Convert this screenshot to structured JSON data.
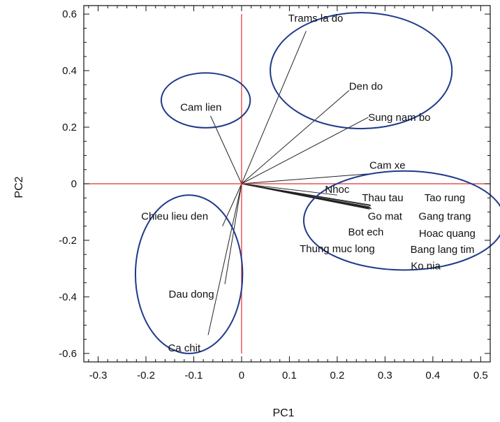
{
  "chart_data": {
    "type": "scatter",
    "title": "",
    "xlabel": "PC1",
    "ylabel": "PC2",
    "xlim": [
      -0.33,
      0.52
    ],
    "ylim": [
      -0.63,
      0.63
    ],
    "x_ticks": [
      -0.3,
      -0.2,
      -0.1,
      0,
      0.1,
      0.2,
      0.3,
      0.4,
      0.5
    ],
    "y_ticks": [
      -0.6,
      -0.4,
      -0.2,
      0,
      0.2,
      0.4,
      0.6
    ],
    "x_tick_labels": [
      "-0.3",
      "-0.2",
      "-0.1",
      "0",
      "0.1",
      "0.2",
      "0.3",
      "0.4",
      "0.5"
    ],
    "y_tick_labels": [
      "-0.6",
      "-0.4",
      "-0.2",
      "0",
      "0.2",
      "0.4",
      "0.6"
    ],
    "grid": false,
    "reference_lines": {
      "x": 0,
      "y": 0,
      "color": "#e03030"
    },
    "vector_color": "#222222",
    "group_ellipse_color": "#1f3a8a",
    "vectors": [
      {
        "label": "Trams la do",
        "x": 0.135,
        "y": 0.54
      },
      {
        "label": "Den do",
        "x": 0.225,
        "y": 0.33
      },
      {
        "label": "Sung nam bo",
        "x": 0.265,
        "y": 0.235
      },
      {
        "label": "Cam xe",
        "x": 0.265,
        "y": 0.035
      },
      {
        "label": "Nhoc",
        "x": 0.2,
        "y": -0.04
      },
      {
        "label": "Thau tau",
        "x": 0.27,
        "y": -0.075
      },
      {
        "label": "Tao rung",
        "x": 0.27,
        "y": -0.078
      },
      {
        "label": "Go mat",
        "x": 0.268,
        "y": -0.082
      },
      {
        "label": "Gang trang",
        "x": 0.27,
        "y": -0.085
      },
      {
        "label": "Hoac quang",
        "x": 0.272,
        "y": -0.088
      },
      {
        "label": "Bang lang tim",
        "x": 0.268,
        "y": -0.09
      },
      {
        "label": "Ko nia",
        "x": 0.266,
        "y": -0.087
      },
      {
        "label": "Bot ech",
        "x": 0.265,
        "y": -0.084
      },
      {
        "label": "Thung muc long",
        "x": 0.264,
        "y": -0.086
      },
      {
        "label": "Cam lien",
        "x": -0.065,
        "y": 0.24
      },
      {
        "label": "Chieu lieu den",
        "x": -0.04,
        "y": -0.15
      },
      {
        "label": "Dau dong",
        "x": -0.035,
        "y": -0.355
      },
      {
        "label": "Ca chit",
        "x": -0.07,
        "y": -0.535
      }
    ],
    "labels": [
      {
        "text": "Trams la do",
        "x": 0.155,
        "y": 0.585
      },
      {
        "text": "Den do",
        "x": 0.26,
        "y": 0.345
      },
      {
        "text": "Sung nam bo",
        "x": 0.33,
        "y": 0.235
      },
      {
        "text": "Cam xe",
        "x": 0.305,
        "y": 0.065
      },
      {
        "text": "Nhoc",
        "x": 0.2,
        "y": -0.02
      },
      {
        "text": "Thau tau",
        "x": 0.295,
        "y": -0.05
      },
      {
        "text": "Tao rung",
        "x": 0.425,
        "y": -0.05
      },
      {
        "text": "Go mat",
        "x": 0.3,
        "y": -0.115
      },
      {
        "text": "Gang trang",
        "x": 0.425,
        "y": -0.115
      },
      {
        "text": "Bot ech",
        "x": 0.26,
        "y": -0.17
      },
      {
        "text": "Hoac quang",
        "x": 0.43,
        "y": -0.175
      },
      {
        "text": "Thung muc long",
        "x": 0.2,
        "y": -0.23
      },
      {
        "text": "Bang lang tim",
        "x": 0.42,
        "y": -0.232
      },
      {
        "text": "Ko nia",
        "x": 0.385,
        "y": -0.29
      },
      {
        "text": "Cam lien",
        "x": -0.085,
        "y": 0.27
      },
      {
        "text": "Chieu lieu den",
        "x": -0.14,
        "y": -0.115
      },
      {
        "text": "Dau dong",
        "x": -0.105,
        "y": -0.39
      },
      {
        "text": "Ca chit",
        "x": -0.12,
        "y": -0.58
      }
    ],
    "groups": [
      {
        "cx": 0.25,
        "cy": 0.4,
        "rx": 0.19,
        "ry": 0.205
      },
      {
        "cx": -0.075,
        "cy": 0.295,
        "rx": 0.093,
        "ry": 0.097
      },
      {
        "cx": 0.34,
        "cy": -0.13,
        "rx": 0.21,
        "ry": 0.175
      },
      {
        "cx": -0.11,
        "cy": -0.32,
        "rx": 0.112,
        "ry": 0.28
      }
    ]
  }
}
